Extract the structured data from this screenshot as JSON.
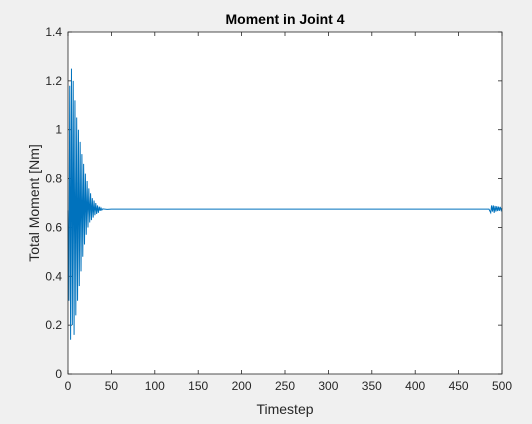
{
  "chart_data": {
    "type": "line",
    "title": "Moment in Joint 4",
    "xlabel": "Timestep",
    "ylabel": "Total Moment [Nm]",
    "xlim": [
      0,
      500
    ],
    "ylim": [
      0,
      1.4
    ],
    "xticks": [
      0,
      50,
      100,
      150,
      200,
      250,
      300,
      350,
      400,
      450,
      500
    ],
    "yticks": [
      0,
      0.2,
      0.4,
      0.6,
      0.8,
      1,
      1.2,
      1.4
    ],
    "xtick_labels": [
      "0",
      "50",
      "100",
      "150",
      "200",
      "250",
      "300",
      "350",
      "400",
      "450",
      "500"
    ],
    "ytick_labels": [
      "0",
      "0.2",
      "0.4",
      "0.6",
      "0.8",
      "1",
      "1.2",
      "1.4"
    ],
    "grid": false,
    "legend": "none",
    "series": [
      {
        "color": "#0072bd",
        "steady_value": 0.675,
        "x": [
          0,
          1,
          2,
          3,
          4,
          5,
          6,
          7,
          8,
          9,
          10,
          11,
          12,
          13,
          14,
          15,
          16,
          17,
          18,
          19,
          20,
          21,
          22,
          23,
          24,
          25,
          26,
          27,
          28,
          29,
          30,
          31,
          32,
          33,
          34,
          35,
          36,
          37,
          38,
          39,
          40,
          45,
          50,
          60,
          80,
          100,
          150,
          200,
          250,
          300,
          350,
          400,
          450,
          480,
          485,
          487,
          488,
          489,
          490,
          491,
          492,
          493,
          494,
          495,
          496,
          497,
          498,
          499,
          500
        ],
        "y": [
          0.67,
          0.3,
          1.18,
          0.14,
          1.25,
          0.2,
          1.2,
          0.16,
          1.12,
          0.24,
          1.05,
          0.3,
          1.0,
          0.36,
          0.95,
          0.42,
          0.9,
          0.48,
          0.86,
          0.53,
          0.82,
          0.57,
          0.79,
          0.6,
          0.76,
          0.62,
          0.74,
          0.63,
          0.72,
          0.64,
          0.71,
          0.65,
          0.7,
          0.655,
          0.69,
          0.66,
          0.685,
          0.668,
          0.68,
          0.671,
          0.676,
          0.674,
          0.675,
          0.675,
          0.675,
          0.675,
          0.675,
          0.675,
          0.675,
          0.675,
          0.675,
          0.675,
          0.675,
          0.675,
          0.675,
          0.66,
          0.69,
          0.665,
          0.69,
          0.66,
          0.688,
          0.665,
          0.687,
          0.667,
          0.685,
          0.668,
          0.684,
          0.67,
          0.68
        ]
      }
    ]
  }
}
